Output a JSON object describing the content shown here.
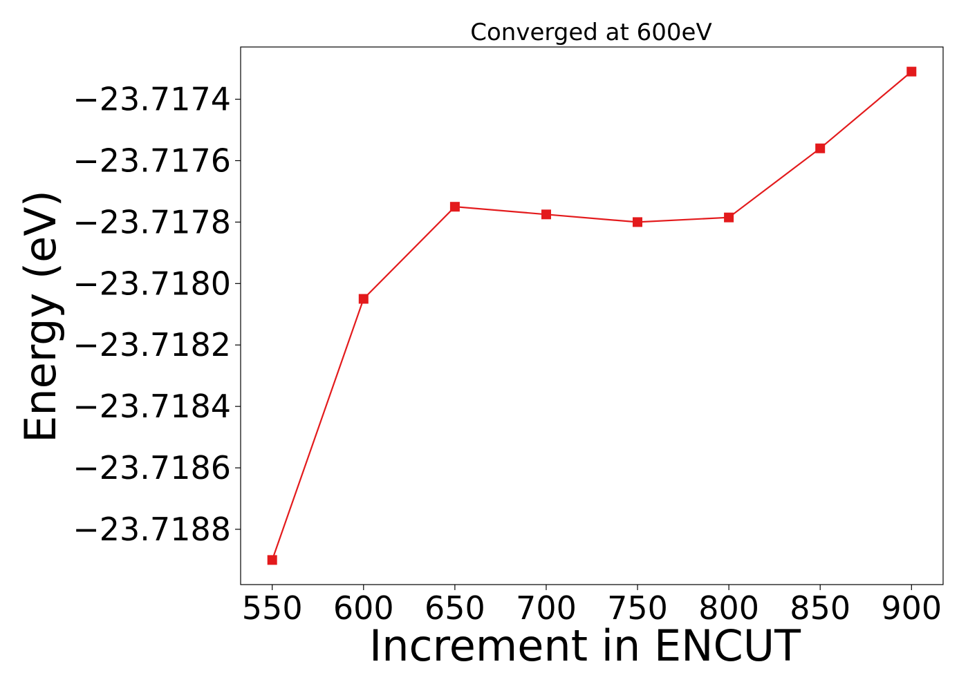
{
  "chart_data": {
    "type": "line",
    "title": "Converged at 600eV",
    "xlabel": "Increment in ENCUT",
    "ylabel": "Energy (eV)",
    "x": [
      550,
      600,
      650,
      700,
      750,
      800,
      850,
      900
    ],
    "series": [
      {
        "values": [
          -23.7189,
          -23.71805,
          -23.71775,
          -23.717775,
          -23.7178,
          -23.717785,
          -23.71756,
          -23.71731
        ],
        "color": "#e31a1c",
        "marker": "square"
      }
    ],
    "xticks": [
      550,
      600,
      650,
      700,
      750,
      800,
      850,
      900
    ],
    "xtick_labels": [
      "550",
      "600",
      "650",
      "700",
      "750",
      "800",
      "850",
      "900"
    ],
    "yticks": [
      -23.7188,
      -23.7186,
      -23.7184,
      -23.7182,
      -23.718,
      -23.7178,
      -23.7176,
      -23.7174
    ],
    "ytick_labels": [
      "−23.7188",
      "−23.7186",
      "−23.7184",
      "−23.7182",
      "−23.7180",
      "−23.7178",
      "−23.7176",
      "−23.7174"
    ],
    "xlim": [
      532.7,
      917.3
    ],
    "ylim": [
      -23.71898,
      -23.71723
    ],
    "grid": false,
    "legend": "none"
  }
}
